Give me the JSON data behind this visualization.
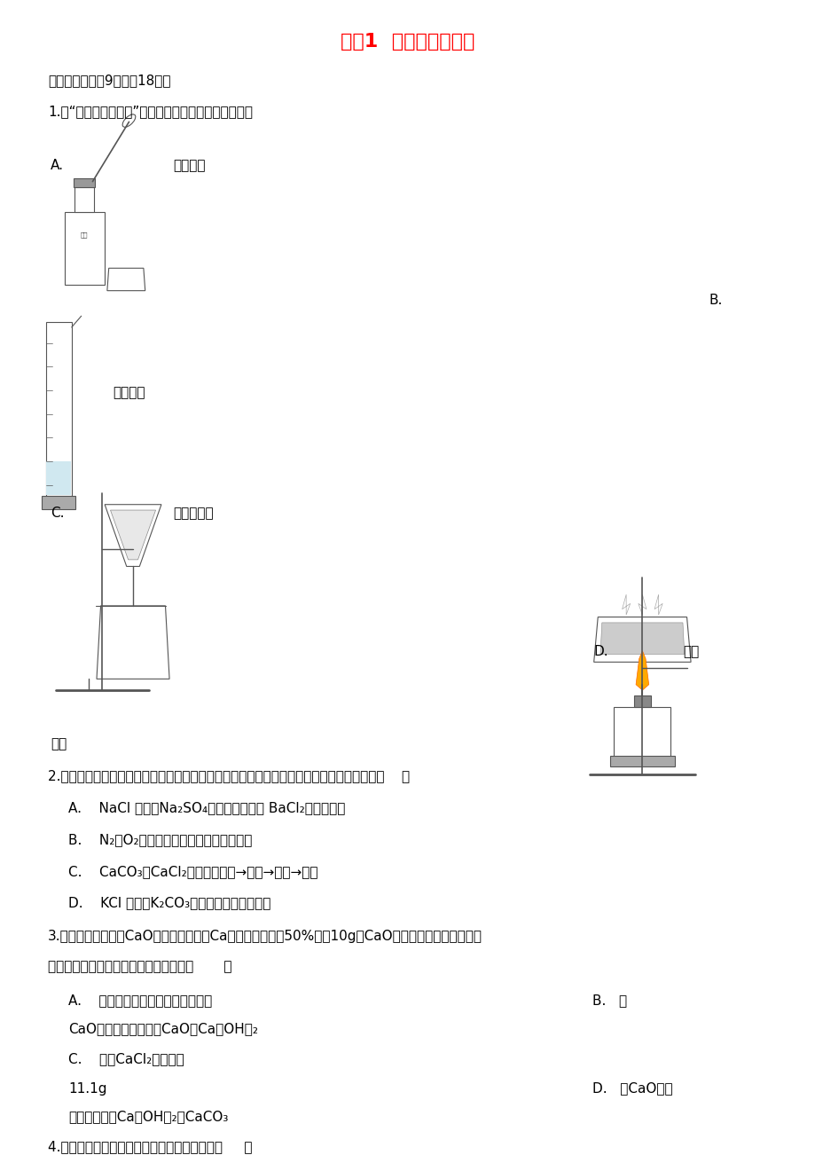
{
  "title": "课题1  生活中常见的盐",
  "title_color": "#FF0000",
  "bg_color": "#FFFFFF",
  "text_color": "#000000",
  "page_width": 9.2,
  "page_height": 13.02,
  "section1": "一、单选题（共9题；共18分）",
  "q1": "1.在“粗盐的初步提纯”实验中，下列操作正确的是（）",
  "q1_A_label": "A.",
  "q1_A_text": "取用粗盐",
  "q1_B_label": "B.",
  "q1_C_label": "C.",
  "q1_C_text": "过滤粗盐水",
  "q1_D_label": "D.",
  "q1_D_text": "蒸干",
  "q1_B_text": "溶解粗盐",
  "filtrate": "滤液",
  "q2": "2.要除去下列物质中的少量杂质（括号内物质为杂质），下列实验方案设计中，不合理的是（    ）",
  "q2_A": "A.    NaCl 溶液（Na₂SO₄）：加入过量的 BaCl₂溶液，过滤",
  "q2_B": "B.    N₂（O₂）：将气体缓缓通过灼热的铜网",
  "q2_C": "C.    CaCO₃（CaCl₂）：加水溶解→过滤→洗涤→干燥",
  "q2_D": "D.    KCl 溶液（K₂CO₃）：加入适量的稀盐酸",
  "q3_line1": "3.某露置于空气中的CaO固体，测得其中Ca元素质量分数为50%，取10g该CaO固体样品，向其中加入足",
  "q3_line2": "量稀盐酸使其完全溶解。正确的说法是（       ）",
  "q3_A": "A.    加入稀盐酸后一定没有气泡产生",
  "q3_B": "B.   该",
  "q3_B2": "CaO样品的成分可能是CaO和Ca（OH）₂",
  "q3_C": "C.    生成CaCl₂的质量为",
  "q3_C2": "11.1g",
  "q3_D": "D.   该CaO样品",
  "q3_D2": "的成分可能是Ca（OH）₂和CaCO₃",
  "q4": "4.下列图像不能正确反映其对应实验操作的是（     ）"
}
